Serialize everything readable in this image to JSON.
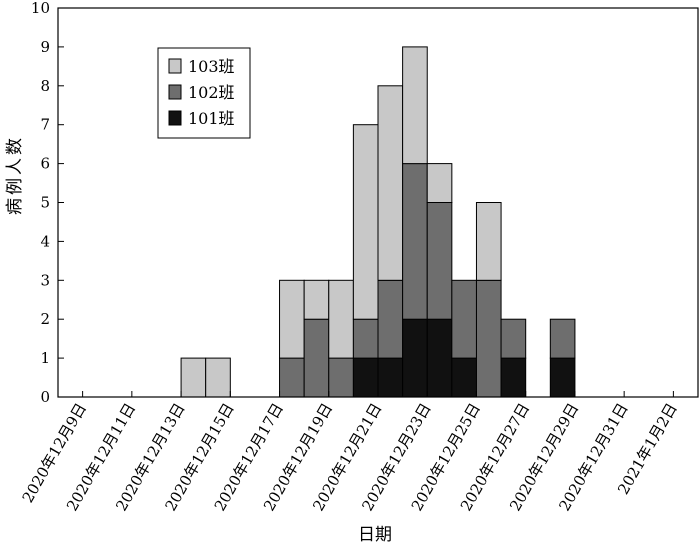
{
  "chart_data": {
    "type": "bar",
    "stacked": true,
    "xlabel": "日期",
    "ylabel": "病例人数",
    "ylim": [
      0,
      10
    ],
    "yticks": [
      0,
      1,
      2,
      3,
      4,
      5,
      6,
      7,
      8,
      9,
      10
    ],
    "x_start": "2020-12-09",
    "x_end": "2021-01-03",
    "categories": [
      "2020年12月9日",
      "2020年12月10日",
      "2020年12月11日",
      "2020年12月12日",
      "2020年12月13日",
      "2020年12月14日",
      "2020年12月15日",
      "2020年12月16日",
      "2020年12月17日",
      "2020年12月18日",
      "2020年12月19日",
      "2020年12月20日",
      "2020年12月21日",
      "2020年12月22日",
      "2020年12月23日",
      "2020年12月24日",
      "2020年12月25日",
      "2020年12月26日",
      "2020年12月27日",
      "2020年12月28日",
      "2020年12月29日",
      "2020年12月30日",
      "2020年12月31日",
      "2021年1月1日",
      "2021年1月2日"
    ],
    "tick_labels": [
      "2020年12月9日",
      "2020年12月11日",
      "2020年12月13日",
      "2020年12月15日",
      "2020年12月17日",
      "2020年12月19日",
      "2020年12月21日",
      "2020年12月23日",
      "2020年12月25日",
      "2020年12月27日",
      "2020年12月29日",
      "2020年12月31日",
      "2021年1月2日"
    ],
    "series": [
      {
        "name": "101班",
        "color": "#111111",
        "values": [
          0,
          0,
          0,
          0,
          0,
          0,
          0,
          0,
          0,
          0,
          0,
          0,
          1,
          1,
          2,
          2,
          1,
          0,
          1,
          0,
          1,
          0,
          0,
          0,
          0
        ]
      },
      {
        "name": "102班",
        "color": "#6e6e6e",
        "values": [
          0,
          0,
          0,
          0,
          0,
          0,
          0,
          0,
          0,
          1,
          2,
          1,
          1,
          2,
          4,
          3,
          2,
          3,
          1,
          0,
          1,
          0,
          0,
          0,
          0
        ]
      },
      {
        "name": "103班",
        "color": "#c8c8c8",
        "values": [
          0,
          0,
          0,
          0,
          0,
          1,
          1,
          0,
          0,
          2,
          1,
          2,
          5,
          5,
          3,
          1,
          0,
          2,
          0,
          0,
          0,
          0,
          0,
          0,
          0
        ]
      }
    ],
    "legend_position": "upper-left",
    "grid": false
  }
}
